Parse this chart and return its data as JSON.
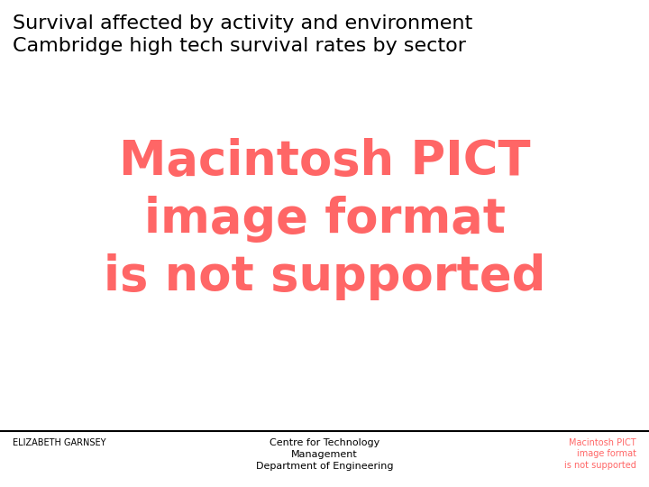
{
  "title_line1": "Survival affected by activity and environment",
  "title_line2": "Cambridge high tech survival rates by sector",
  "main_text_line1": "Macintosh PICT",
  "main_text_line2": "image format",
  "main_text_line3": "is not supported",
  "footer_left": "ELIZABETH GARNSEY",
  "footer_center_line1": "Centre for Technology",
  "footer_center_line2": "Management",
  "footer_center_line3": "Department of Engineering",
  "footer_right_line1": "Macintosh PICT",
  "footer_right_line2": "image format",
  "footer_right_line3": "is not supported",
  "bg_color": "#ffffff",
  "title_color": "#000000",
  "main_text_color": "#ff6666",
  "footer_left_color": "#000000",
  "footer_center_color": "#000000",
  "footer_right_color": "#ff6666",
  "separator_color": "#000000"
}
